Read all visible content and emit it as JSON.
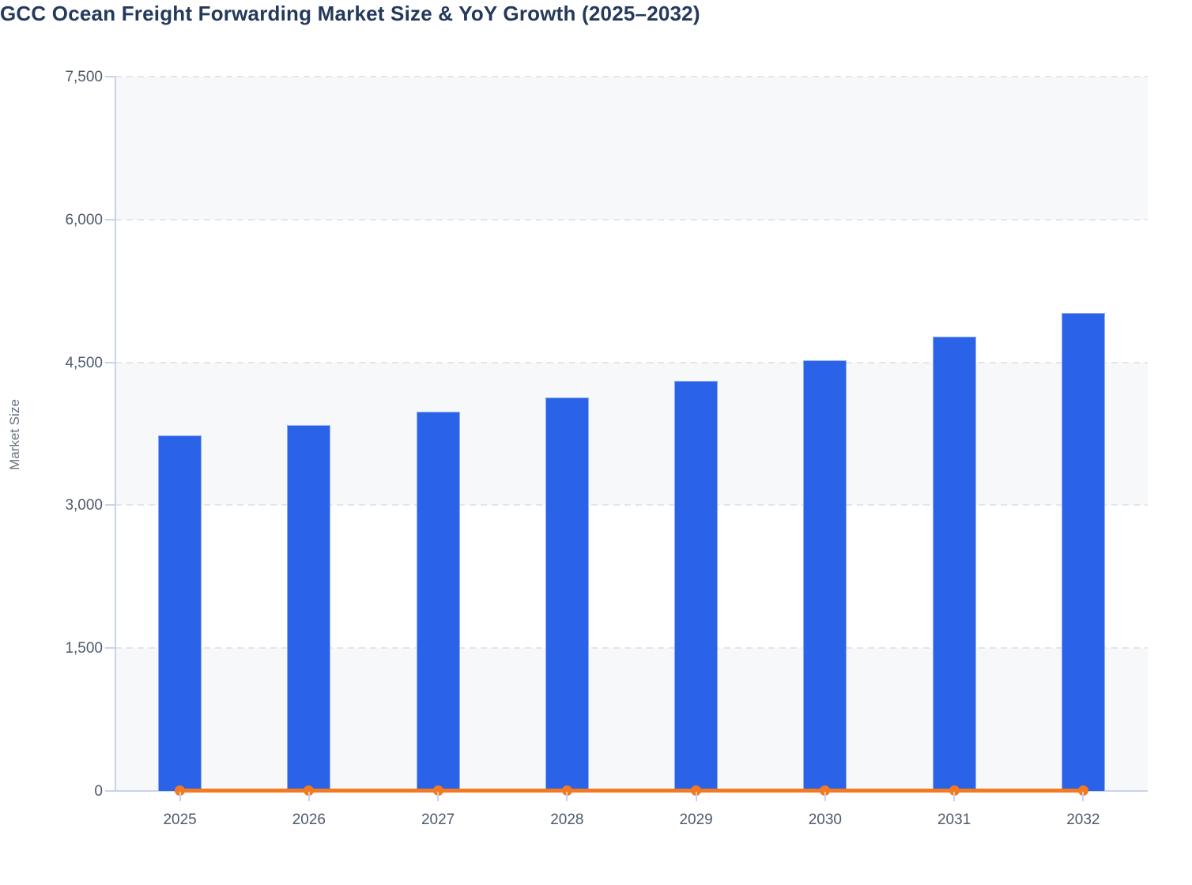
{
  "title": "GCC Ocean Freight Forwarding Market Size & YoY Growth (2025–2032)",
  "chart_data": {
    "type": "bar",
    "title": "GCC Ocean Freight Forwarding Market Size & YoY Growth (2025–2032)",
    "categories": [
      "2025",
      "2026",
      "2027",
      "2028",
      "2029",
      "2030",
      "2031",
      "2032"
    ],
    "series": [
      {
        "name": "Market Size",
        "type": "bar",
        "color": "#2b63e8",
        "values": [
          3730,
          3845,
          3980,
          4130,
          4305,
          4520,
          4770,
          5020
        ]
      },
      {
        "name": "YoY Growth",
        "type": "line",
        "color": "#f5791d",
        "values": [
          3.1,
          3.1,
          3.5,
          3.8,
          4.2,
          5.0,
          5.5,
          5.2
        ]
      }
    ],
    "xlabel": "",
    "ylabel": "Market Size",
    "ylim": [
      0,
      7500
    ],
    "y_ticks": [
      0,
      1500,
      3000,
      4500,
      6000,
      7500
    ],
    "grid": "horizontal-dashed",
    "split_bands": "alternate intervals shaded from top (6000-7500, 3000-4500, 0-1500)",
    "legend_position": "none"
  },
  "colors": {
    "bar_fill": "#2b63e8",
    "line_stroke": "#f5791d",
    "title_text": "#24395b",
    "tick_text": "#4e5a6e",
    "axis_line": "#c9d2ec",
    "gridline": "#e3e5e9",
    "band_fill": "#f7f8fa"
  }
}
